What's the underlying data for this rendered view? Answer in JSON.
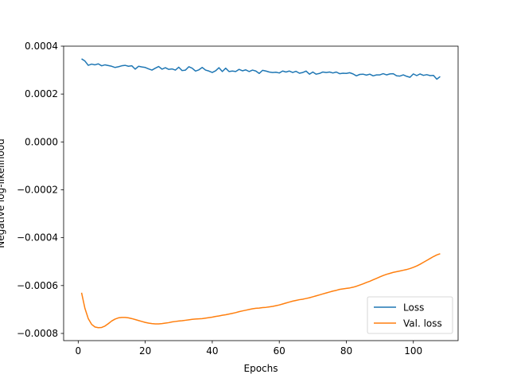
{
  "chart_data": {
    "type": "line",
    "title": "",
    "xlabel": "Epochs",
    "ylabel": "Negative log-likelihood",
    "xlim": [
      -4.35,
      113.35
    ],
    "ylim": [
      -0.00083,
      0.0004
    ],
    "xticks": [
      0,
      20,
      40,
      60,
      80,
      100
    ],
    "yticks": [
      -0.0008,
      -0.0006,
      -0.0004,
      -0.0002,
      0.0,
      0.0002,
      0.0004
    ],
    "ytick_labels": [
      "−0.0008",
      "−0.0006",
      "−0.0004",
      "−0.0002",
      "0.0000",
      "0.0002",
      "0.0004"
    ],
    "grid": false,
    "legend": {
      "placement": "lower-right"
    },
    "series": [
      {
        "name": "Loss",
        "color": "#1f77b4",
        "points": [
          [
            1,
            0.000347
          ],
          [
            2,
            0.000338
          ],
          [
            3,
            0.00032
          ],
          [
            4,
            0.000325
          ],
          [
            5,
            0.000322
          ],
          [
            6,
            0.000326
          ],
          [
            7,
            0.000318
          ],
          [
            8,
            0.000322
          ],
          [
            9,
            0.000319
          ],
          [
            10,
            0.000316
          ],
          [
            11,
            0.000311
          ],
          [
            12,
            0.000314
          ],
          [
            13,
            0.000318
          ],
          [
            14,
            0.00032
          ],
          [
            15,
            0.000316
          ],
          [
            16,
            0.000318
          ],
          [
            17,
            0.000304
          ],
          [
            18,
            0.000316
          ],
          [
            19,
            0.000313
          ],
          [
            20,
            0.000311
          ],
          [
            21,
            0.000305
          ],
          [
            22,
            0.0003
          ],
          [
            23,
            0.000308
          ],
          [
            24,
            0.000315
          ],
          [
            25,
            0.000304
          ],
          [
            26,
            0.00031
          ],
          [
            27,
            0.000303
          ],
          [
            28,
            0.000305
          ],
          [
            29,
            0.0003
          ],
          [
            30,
            0.000312
          ],
          [
            31,
            0.000298
          ],
          [
            32,
            0.0003
          ],
          [
            33,
            0.000314
          ],
          [
            34,
            0.000308
          ],
          [
            35,
            0.000296
          ],
          [
            36,
            0.000301
          ],
          [
            37,
            0.000311
          ],
          [
            38,
            0.0003
          ],
          [
            39,
            0.000296
          ],
          [
            40,
            0.00029
          ],
          [
            41,
            0.000297
          ],
          [
            42,
            0.00031
          ],
          [
            43,
            0.000294
          ],
          [
            44,
            0.000308
          ],
          [
            45,
            0.000294
          ],
          [
            46,
            0.000296
          ],
          [
            47,
            0.000294
          ],
          [
            48,
            0.000303
          ],
          [
            49,
            0.000297
          ],
          [
            50,
            0.000301
          ],
          [
            51,
            0.000294
          ],
          [
            52,
            0.0003
          ],
          [
            53,
            0.000296
          ],
          [
            54,
            0.000286
          ],
          [
            55,
            0.000299
          ],
          [
            56,
            0.000296
          ],
          [
            57,
            0.000292
          ],
          [
            58,
            0.00029
          ],
          [
            59,
            0.000291
          ],
          [
            60,
            0.000288
          ],
          [
            61,
            0.000296
          ],
          [
            62,
            0.000292
          ],
          [
            63,
            0.000296
          ],
          [
            64,
            0.00029
          ],
          [
            65,
            0.000295
          ],
          [
            66,
            0.000287
          ],
          [
            67,
            0.00029
          ],
          [
            68,
            0.000296
          ],
          [
            69,
            0.000283
          ],
          [
            70,
            0.000292
          ],
          [
            71,
            0.000283
          ],
          [
            72,
            0.000286
          ],
          [
            73,
            0.000292
          ],
          [
            74,
            0.00029
          ],
          [
            75,
            0.000292
          ],
          [
            76,
            0.000288
          ],
          [
            77,
            0.000292
          ],
          [
            78,
            0.000285
          ],
          [
            79,
            0.000287
          ],
          [
            80,
            0.000286
          ],
          [
            81,
            0.000289
          ],
          [
            82,
            0.000284
          ],
          [
            83,
            0.000276
          ],
          [
            84,
            0.000282
          ],
          [
            85,
            0.000283
          ],
          [
            86,
            0.000279
          ],
          [
            87,
            0.000283
          ],
          [
            88,
            0.000276
          ],
          [
            89,
            0.00028
          ],
          [
            90,
            0.00028
          ],
          [
            91,
            0.000285
          ],
          [
            92,
            0.00028
          ],
          [
            93,
            0.000284
          ],
          [
            94,
            0.000285
          ],
          [
            95,
            0.000276
          ],
          [
            96,
            0.000275
          ],
          [
            97,
            0.00028
          ],
          [
            98,
            0.000274
          ],
          [
            99,
            0.00027
          ],
          [
            100,
            0.000284
          ],
          [
            101,
            0.000277
          ],
          [
            102,
            0.000284
          ],
          [
            103,
            0.000278
          ],
          [
            104,
            0.000281
          ],
          [
            105,
            0.000277
          ],
          [
            106,
            0.000278
          ],
          [
            107,
            0.000262
          ],
          [
            108,
            0.000273
          ]
        ]
      },
      {
        "name": "Val. loss",
        "color": "#ff7f0e",
        "points": [
          [
            1,
            -0.00063
          ],
          [
            2,
            -0.000695
          ],
          [
            3,
            -0.000738
          ],
          [
            4,
            -0.000762
          ],
          [
            5,
            -0.000773
          ],
          [
            6,
            -0.000776
          ],
          [
            7,
            -0.000775
          ],
          [
            8,
            -0.000769
          ],
          [
            9,
            -0.000759
          ],
          [
            10,
            -0.000748
          ],
          [
            11,
            -0.00074
          ],
          [
            12,
            -0.000735
          ],
          [
            13,
            -0.000733
          ],
          [
            14,
            -0.000733
          ],
          [
            15,
            -0.000735
          ],
          [
            16,
            -0.000738
          ],
          [
            17,
            -0.000742
          ],
          [
            18,
            -0.000746
          ],
          [
            19,
            -0.00075
          ],
          [
            20,
            -0.000754
          ],
          [
            21,
            -0.000757
          ],
          [
            22,
            -0.000759
          ],
          [
            23,
            -0.00076
          ],
          [
            24,
            -0.00076
          ],
          [
            25,
            -0.000759
          ],
          [
            26,
            -0.000757
          ],
          [
            27,
            -0.000755
          ],
          [
            28,
            -0.000752
          ],
          [
            29,
            -0.00075
          ],
          [
            30,
            -0.000748
          ],
          [
            31,
            -0.000747
          ],
          [
            32,
            -0.000745
          ],
          [
            33,
            -0.000743
          ],
          [
            34,
            -0.000741
          ],
          [
            35,
            -0.00074
          ],
          [
            36,
            -0.000739
          ],
          [
            37,
            -0.000738
          ],
          [
            38,
            -0.000736
          ],
          [
            39,
            -0.000734
          ],
          [
            40,
            -0.000732
          ],
          [
            41,
            -0.000729
          ],
          [
            42,
            -0.000727
          ],
          [
            43,
            -0.000724
          ],
          [
            44,
            -0.000722
          ],
          [
            45,
            -0.000719
          ],
          [
            46,
            -0.000716
          ],
          [
            47,
            -0.000713
          ],
          [
            48,
            -0.000709
          ],
          [
            49,
            -0.000706
          ],
          [
            50,
            -0.000703
          ],
          [
            51,
            -0.0007
          ],
          [
            52,
            -0.000697
          ],
          [
            53,
            -0.000695
          ],
          [
            54,
            -0.000694
          ],
          [
            55,
            -0.000692
          ],
          [
            56,
            -0.000691
          ],
          [
            57,
            -0.000689
          ],
          [
            58,
            -0.000687
          ],
          [
            59,
            -0.000684
          ],
          [
            60,
            -0.000681
          ],
          [
            61,
            -0.000677
          ],
          [
            62,
            -0.000673
          ],
          [
            63,
            -0.000669
          ],
          [
            64,
            -0.000665
          ],
          [
            65,
            -0.000662
          ],
          [
            66,
            -0.000659
          ],
          [
            67,
            -0.000657
          ],
          [
            68,
            -0.000654
          ],
          [
            69,
            -0.000651
          ],
          [
            70,
            -0.000647
          ],
          [
            71,
            -0.000643
          ],
          [
            72,
            -0.000639
          ],
          [
            73,
            -0.000635
          ],
          [
            74,
            -0.000631
          ],
          [
            75,
            -0.000627
          ],
          [
            76,
            -0.000623
          ],
          [
            77,
            -0.00062
          ],
          [
            78,
            -0.000616
          ],
          [
            79,
            -0.000614
          ],
          [
            80,
            -0.000612
          ],
          [
            81,
            -0.00061
          ],
          [
            82,
            -0.000607
          ],
          [
            83,
            -0.000603
          ],
          [
            84,
            -0.000598
          ],
          [
            85,
            -0.000593
          ],
          [
            86,
            -0.000587
          ],
          [
            87,
            -0.000582
          ],
          [
            88,
            -0.000576
          ],
          [
            89,
            -0.00057
          ],
          [
            90,
            -0.000564
          ],
          [
            91,
            -0.000558
          ],
          [
            92,
            -0.000553
          ],
          [
            93,
            -0.000549
          ],
          [
            94,
            -0.000545
          ],
          [
            95,
            -0.000542
          ],
          [
            96,
            -0.000539
          ],
          [
            97,
            -0.000536
          ],
          [
            98,
            -0.000533
          ],
          [
            99,
            -0.000529
          ],
          [
            100,
            -0.000524
          ],
          [
            101,
            -0.000518
          ],
          [
            102,
            -0.000511
          ],
          [
            103,
            -0.000503
          ],
          [
            104,
            -0.000495
          ],
          [
            105,
            -0.000487
          ],
          [
            106,
            -0.000479
          ],
          [
            107,
            -0.000472
          ],
          [
            108,
            -0.000467
          ]
        ]
      }
    ]
  }
}
